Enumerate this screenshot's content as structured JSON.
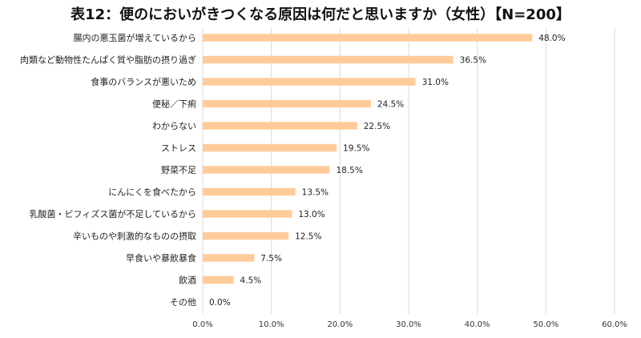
{
  "chart_data": {
    "type": "bar",
    "orientation": "horizontal",
    "title": "表12：便のにおいがきつくなる原因は何だと思いますか（女性）【N=200】",
    "categories": [
      "腸内の悪玉菌が増えているから",
      "肉類など動物性たんぱく質や脂肪の摂り過ぎ",
      "食事のバランスが悪いため",
      "便秘／下痢",
      "わからない",
      "ストレス",
      "野菜不足",
      "にんにくを食べたから",
      "乳酸菌・ビフィズス菌が不足しているから",
      "辛いものや刺激的なものの摂取",
      "早食いや暴飲暴食",
      "飲酒",
      "その他"
    ],
    "values": [
      48.0,
      36.5,
      31.0,
      24.5,
      22.5,
      19.5,
      18.5,
      13.5,
      13.0,
      12.5,
      7.5,
      4.5,
      0.0
    ],
    "value_labels": [
      "48.0%",
      "36.5%",
      "31.0%",
      "24.5%",
      "22.5%",
      "19.5%",
      "18.5%",
      "13.5%",
      "13.0%",
      "12.5%",
      "7.5%",
      "4.5%",
      "0.0%"
    ],
    "xlim": [
      0,
      60
    ],
    "xticks": [
      0,
      10,
      20,
      30,
      40,
      50,
      60
    ],
    "xtick_labels": [
      "0.0%",
      "10.0%",
      "20.0%",
      "30.0%",
      "40.0%",
      "50.0%",
      "60.0%"
    ],
    "xlabel": "",
    "ylabel": "",
    "grid": "vertical",
    "legend": "none",
    "colors": {
      "bar": "#FFCC99",
      "grid": "#D9D9D9",
      "text": "#222222"
    }
  }
}
